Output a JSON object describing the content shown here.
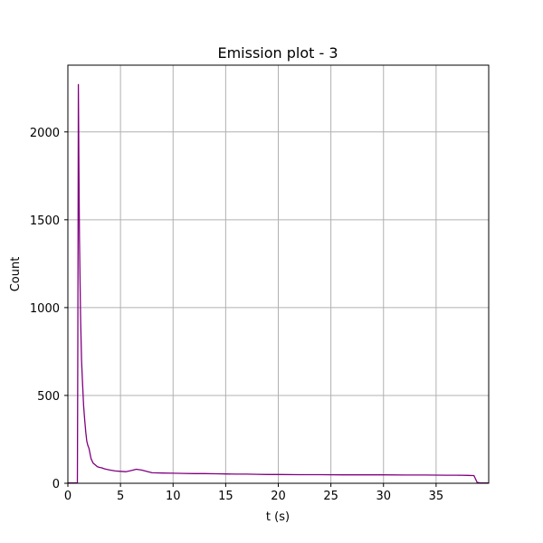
{
  "chart_data": {
    "type": "line",
    "title": "Emission plot - 3",
    "xlabel": "t (s)",
    "ylabel": "Count",
    "xlim": [
      0,
      40
    ],
    "ylim": [
      0,
      2380
    ],
    "xticks": [
      0,
      5,
      10,
      15,
      20,
      25,
      30,
      35
    ],
    "yticks": [
      0,
      500,
      1000,
      1500,
      2000
    ],
    "grid": true,
    "line_color": "#800080",
    "grid_color": "#b0b0b0",
    "series": [
      {
        "x": [
          0,
          0.9,
          0.95,
          1.0,
          1.05,
          1.1,
          1.2,
          1.3,
          1.4,
          1.5,
          1.6,
          1.7,
          1.8,
          1.9,
          2.0,
          2.2,
          2.4,
          2.6,
          2.8,
          3.0,
          3.2,
          3.5,
          4.0,
          4.5,
          5.0,
          5.5,
          6.0,
          6.5,
          7.0,
          8.0,
          9.0,
          10.0,
          11.0,
          12.0,
          13.0,
          14.0,
          15.0,
          16.0,
          17.0,
          18.0,
          19.0,
          20.0,
          22.0,
          24.0,
          26.0,
          28.0,
          30.0,
          32.0,
          34.0,
          36.0,
          37.0,
          38.0,
          38.6,
          38.9,
          39.2,
          40.0
        ],
        "y": [
          2,
          2,
          800,
          2270,
          1800,
          1400,
          950,
          700,
          560,
          440,
          360,
          290,
          240,
          215,
          200,
          140,
          115,
          105,
          95,
          90,
          88,
          82,
          75,
          70,
          68,
          66,
          72,
          80,
          75,
          60,
          58,
          57,
          56,
          55,
          55,
          54,
          53,
          52,
          52,
          51,
          50,
          50,
          49,
          49,
          48,
          48,
          48,
          47,
          47,
          46,
          46,
          45,
          44,
          5,
          2,
          2
        ]
      }
    ]
  }
}
